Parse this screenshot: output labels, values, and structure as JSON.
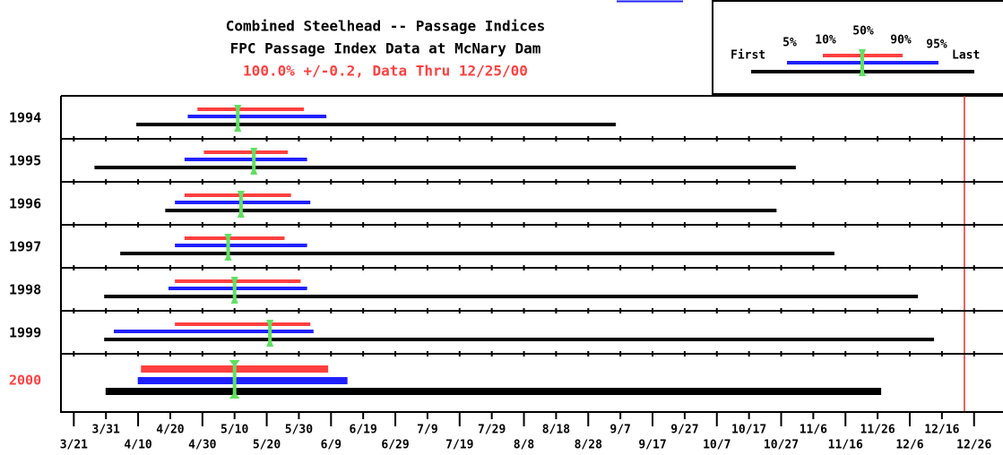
{
  "chart_data": {
    "type": "range",
    "title": "Combined Steelhead -- Passage Indices",
    "subtitle": "FPC Passage Index Data at McNary Dam",
    "note": "100.0% +/-0.2, Data Thru 12/25/00",
    "note_color": "#ff4040",
    "categories": [
      "1994",
      "1995",
      "1996",
      "1997",
      "1998",
      "1999",
      "2000"
    ],
    "label_colors": [
      "#000000",
      "#000000",
      "#000000",
      "#000000",
      "#000000",
      "#000000",
      "#ff4040"
    ],
    "emphasis": [
      false,
      false,
      false,
      false,
      false,
      false,
      true
    ],
    "series": [
      {
        "name": "First",
        "color": "#000000",
        "values": [
          100,
          87,
          109,
          95,
          90,
          90,
          91
        ]
      },
      {
        "name": "5%",
        "color": "#2020ff",
        "values": [
          116,
          115,
          112,
          112,
          110,
          93,
          101
        ]
      },
      {
        "name": "10%",
        "color": "#ff4040",
        "values": [
          119,
          121,
          115,
          115,
          112,
          112,
          102
        ]
      },
      {
        "name": "50%",
        "color": "#60e060",
        "values": [
          131,
          136,
          132,
          128,
          130,
          141,
          130
        ]
      },
      {
        "name": "90%",
        "color": "#ff4040",
        "values": [
          151,
          146,
          147,
          145,
          150,
          153,
          158
        ]
      },
      {
        "name": "95%",
        "color": "#2020ff",
        "values": [
          158,
          152,
          153,
          152,
          152,
          154,
          164
        ]
      },
      {
        "name": "Last",
        "color": "#000000",
        "values": [
          248,
          304,
          298,
          316,
          342,
          347,
          330
        ]
      }
    ],
    "xlim": [
      76,
      369
    ],
    "xticks": [
      {
        "value": 80,
        "label": "3/21"
      },
      {
        "value": 90,
        "label": "3/31"
      },
      {
        "value": 100,
        "label": "4/10"
      },
      {
        "value": 110,
        "label": "4/20"
      },
      {
        "value": 120,
        "label": "4/30"
      },
      {
        "value": 130,
        "label": "5/10"
      },
      {
        "value": 140,
        "label": "5/20"
      },
      {
        "value": 150,
        "label": "5/30"
      },
      {
        "value": 160,
        "label": "6/9"
      },
      {
        "value": 170,
        "label": "6/19"
      },
      {
        "value": 180,
        "label": "6/29"
      },
      {
        "value": 190,
        "label": "7/9"
      },
      {
        "value": 200,
        "label": "7/19"
      },
      {
        "value": 210,
        "label": "7/29"
      },
      {
        "value": 220,
        "label": "8/8"
      },
      {
        "value": 230,
        "label": "8/18"
      },
      {
        "value": 240,
        "label": "8/28"
      },
      {
        "value": 250,
        "label": "9/7"
      },
      {
        "value": 260,
        "label": "9/17"
      },
      {
        "value": 270,
        "label": "9/27"
      },
      {
        "value": 280,
        "label": "10/7"
      },
      {
        "value": 290,
        "label": "10/17"
      },
      {
        "value": 300,
        "label": "10/27"
      },
      {
        "value": 310,
        "label": "11/6"
      },
      {
        "value": 320,
        "label": "11/16"
      },
      {
        "value": 330,
        "label": "11/26"
      },
      {
        "value": 340,
        "label": "12/6"
      },
      {
        "value": 350,
        "label": "12/16"
      },
      {
        "value": 360,
        "label": "12/26"
      }
    ],
    "reference_line": 357,
    "reference_color": "#e03030"
  }
}
